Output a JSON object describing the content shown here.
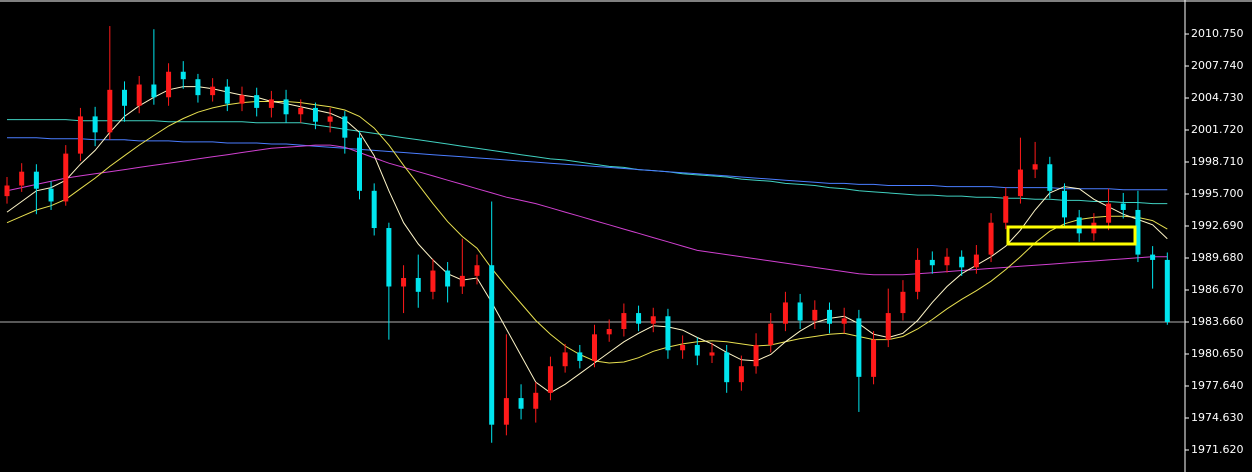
{
  "chart_data": {
    "type": "candlestick",
    "ylim": [
      1969.55,
      2013.95
    ],
    "yticks": [
      {
        "value": 2010.75,
        "label": "2010.750"
      },
      {
        "value": 2007.74,
        "label": "2007.740"
      },
      {
        "value": 2004.73,
        "label": "2004.730"
      },
      {
        "value": 2001.72,
        "label": "2001.720"
      },
      {
        "value": 1998.71,
        "label": "1998.710"
      },
      {
        "value": 1995.7,
        "label": "1995.700"
      },
      {
        "value": 1992.69,
        "label": "1992.690"
      },
      {
        "value": 1989.68,
        "label": "1989.680"
      },
      {
        "value": 1986.67,
        "label": "1986.670"
      },
      {
        "value": 1983.66,
        "label": "1983.660"
      },
      {
        "value": 1980.65,
        "label": "1980.650"
      },
      {
        "value": 1977.64,
        "label": "1977.640"
      },
      {
        "value": 1974.63,
        "label": "1974.630"
      },
      {
        "value": 1971.62,
        "label": "1971.620"
      }
    ],
    "up_color": "#ff1a1a",
    "down_color": "#00e5ee",
    "open": [
      1995.5,
      1996.5,
      1997.8,
      1996.2,
      1995.0,
      1999.5,
      2003.0,
      2001.5,
      2005.5,
      2004.0,
      2006.0,
      2004.8,
      2007.2,
      2006.5,
      2005.0,
      2005.8,
      2004.2,
      2005.0,
      2003.8,
      2004.6,
      2003.2,
      2003.8,
      2002.5,
      2003.0,
      2001.0,
      1996.0,
      1992.5,
      1987.0,
      1987.8,
      1986.5,
      1988.5,
      1987.0,
      1988.0,
      1989.0,
      1974.0,
      1976.5,
      1975.5,
      1977.0,
      1979.5,
      1980.8,
      1980.0,
      1982.5,
      1983.0,
      1984.5,
      1983.5,
      1984.2,
      1981.0,
      1981.5,
      1980.5,
      1980.8,
      1978.0,
      1979.5,
      1981.5,
      1983.5,
      1985.5,
      1983.8,
      1984.8,
      1983.5,
      1984.0,
      1978.5,
      1982.0,
      1984.5,
      1986.5,
      1989.5,
      1989.0,
      1989.8,
      1988.8,
      1990.0,
      1993.0,
      1995.5,
      1998.0,
      1998.5,
      1996.0,
      1993.5,
      1992.0,
      1993.0,
      1994.8,
      1994.2,
      1990.0,
      1989.5
    ],
    "high": [
      1997.3,
      1998.6,
      1998.5,
      1996.9,
      2000.3,
      2003.8,
      2003.9,
      2011.5,
      2006.3,
      2006.8,
      2011.2,
      2008.0,
      2008.2,
      2007.0,
      2006.6,
      2006.5,
      2005.8,
      2005.7,
      2005.4,
      2005.5,
      2004.6,
      2004.3,
      2003.8,
      2003.5,
      2001.6,
      1996.7,
      1993.0,
      1989.0,
      1990.0,
      1989.6,
      1989.3,
      1991.5,
      1990.0,
      1995.0,
      1982.5,
      1977.8,
      1978.0,
      1980.4,
      1981.6,
      1981.5,
      1983.4,
      1983.9,
      1985.4,
      1985.2,
      1985.0,
      1984.9,
      1982.4,
      1982.2,
      1981.7,
      1981.5,
      1980.5,
      1982.6,
      1984.5,
      1986.5,
      1986.3,
      1985.7,
      1985.5,
      1985.0,
      1984.8,
      1982.8,
      1986.8,
      1987.6,
      1990.6,
      1990.3,
      1990.6,
      1990.4,
      1990.9,
      1993.9,
      1996.3,
      2001.0,
      2000.6,
      1999.2,
      1996.7,
      1994.2,
      1993.9,
      1996.2,
      1995.8,
      1996.0,
      1990.8,
      1990.2
    ],
    "low": [
      1994.8,
      1995.9,
      1993.8,
      1994.2,
      1994.6,
      1998.8,
      2000.2,
      2000.8,
      2002.5,
      2003.3,
      2004.1,
      2004.0,
      2005.6,
      2004.3,
      2004.4,
      2003.5,
      2003.5,
      2003.0,
      2002.9,
      2002.4,
      2002.4,
      2001.8,
      2001.5,
      1999.5,
      1995.2,
      1991.8,
      1982.0,
      1984.5,
      1985.0,
      1985.8,
      1985.5,
      1986.3,
      1987.2,
      1972.3,
      1973.0,
      1974.5,
      1974.2,
      1976.3,
      1978.9,
      1979.3,
      1979.4,
      1981.8,
      1982.3,
      1982.8,
      1982.7,
      1980.2,
      1980.2,
      1979.6,
      1979.8,
      1977.0,
      1977.2,
      1978.8,
      1980.8,
      1982.8,
      1983.0,
      1983.0,
      1982.6,
      1982.6,
      1975.2,
      1977.8,
      1981.3,
      1983.8,
      1985.8,
      1988.2,
      1988.3,
      1988.0,
      1988.2,
      1989.3,
      1992.4,
      1994.8,
      1997.2,
      1995.3,
      1992.7,
      1991.2,
      1991.3,
      1992.3,
      1993.4,
      1989.3,
      1986.8,
      1983.4
    ],
    "close": [
      1996.5,
      1997.8,
      1996.2,
      1995.0,
      1999.5,
      2003.0,
      2001.5,
      2005.5,
      2004.0,
      2006.0,
      2004.8,
      2007.2,
      2006.5,
      2005.0,
      2005.8,
      2004.2,
      2005.0,
      2003.8,
      2004.6,
      2003.2,
      2003.8,
      2002.5,
      2003.0,
      2001.0,
      1996.0,
      1992.5,
      1987.0,
      1987.8,
      1986.5,
      1988.5,
      1987.0,
      1988.0,
      1989.0,
      1974.0,
      1976.5,
      1975.5,
      1977.0,
      1979.5,
      1980.8,
      1980.0,
      1982.5,
      1983.0,
      1984.5,
      1983.5,
      1984.2,
      1981.0,
      1981.5,
      1980.5,
      1980.8,
      1978.0,
      1979.5,
      1981.5,
      1983.5,
      1985.5,
      1983.8,
      1984.8,
      1983.5,
      1984.0,
      1978.5,
      1982.0,
      1984.5,
      1986.5,
      1989.5,
      1989.0,
      1989.8,
      1988.8,
      1990.0,
      1993.0,
      1995.5,
      1998.0,
      1998.5,
      1996.0,
      1993.5,
      1992.0,
      1993.0,
      1994.8,
      1994.2,
      1990.0,
      1989.5,
      1983.66
    ],
    "series": [
      {
        "color": "#40d0c0",
        "values": [
          2002.7,
          2002.7,
          2002.7,
          2002.7,
          2002.7,
          2002.6,
          2002.6,
          2002.6,
          2002.6,
          2002.6,
          2002.6,
          2002.5,
          2002.5,
          2002.5,
          2002.5,
          2002.5,
          2002.5,
          2002.4,
          2002.4,
          2002.4,
          2002.4,
          2002.2,
          2002.0,
          2001.8,
          2001.6,
          2001.4,
          2001.2,
          2001.0,
          2000.8,
          2000.6,
          2000.4,
          2000.2,
          2000.0,
          1999.8,
          1999.6,
          1999.4,
          1999.2,
          1999.0,
          1998.9,
          1998.7,
          1998.5,
          1998.3,
          1998.2,
          1998.0,
          1997.9,
          1997.8,
          1997.6,
          1997.5,
          1997.4,
          1997.3,
          1997.1,
          1997.0,
          1996.9,
          1996.7,
          1996.6,
          1996.5,
          1996.3,
          1996.2,
          1996.0,
          1995.9,
          1995.8,
          1995.7,
          1995.6,
          1995.6,
          1995.5,
          1995.5,
          1995.4,
          1995.4,
          1995.3,
          1995.3,
          1995.2,
          1995.2,
          1995.1,
          1995.1,
          1995.0,
          1995.0,
          1994.9,
          1994.9,
          1994.8,
          1994.8
        ]
      },
      {
        "color": "#4a7dff",
        "values": [
          2001.0,
          2001.0,
          2001.0,
          2000.9,
          2000.9,
          2000.9,
          2000.8,
          2000.8,
          2000.8,
          2000.7,
          2000.7,
          2000.7,
          2000.6,
          2000.6,
          2000.6,
          2000.5,
          2000.5,
          2000.5,
          2000.4,
          2000.4,
          2000.3,
          2000.2,
          2000.1,
          2000.0,
          1999.9,
          1999.8,
          1999.7,
          1999.6,
          1999.5,
          1999.4,
          1999.3,
          1999.2,
          1999.1,
          1999.0,
          1998.9,
          1998.8,
          1998.7,
          1998.6,
          1998.5,
          1998.4,
          1998.3,
          1998.2,
          1998.1,
          1998.0,
          1997.9,
          1997.8,
          1997.7,
          1997.6,
          1997.5,
          1997.4,
          1997.3,
          1997.2,
          1997.1,
          1997.0,
          1996.9,
          1996.8,
          1996.7,
          1996.7,
          1996.6,
          1996.6,
          1996.5,
          1996.5,
          1996.5,
          1996.5,
          1996.4,
          1996.4,
          1996.4,
          1996.4,
          1996.3,
          1996.3,
          1996.3,
          1996.3,
          1996.2,
          1996.2,
          1996.2,
          1996.2,
          1996.1,
          1996.1,
          1996.1,
          1996.1
        ]
      },
      {
        "color": "#d040d0",
        "values": [
          1996.0,
          1996.3,
          1996.6,
          1996.9,
          1997.2,
          1997.4,
          1997.6,
          1997.8,
          1998.0,
          1998.2,
          1998.4,
          1998.6,
          1998.8,
          1999.0,
          1999.2,
          1999.4,
          1999.6,
          1999.8,
          2000.0,
          2000.1,
          2000.2,
          2000.3,
          2000.3,
          2000.1,
          1999.6,
          1999.1,
          1998.6,
          1998.2,
          1997.8,
          1997.4,
          1997.0,
          1996.6,
          1996.2,
          1995.8,
          1995.4,
          1995.1,
          1994.8,
          1994.4,
          1994.0,
          1993.6,
          1993.2,
          1992.8,
          1992.4,
          1992.0,
          1991.6,
          1991.2,
          1990.8,
          1990.4,
          1990.2,
          1990.0,
          1989.8,
          1989.6,
          1989.4,
          1989.2,
          1989.0,
          1988.8,
          1988.6,
          1988.4,
          1988.2,
          1988.1,
          1988.1,
          1988.1,
          1988.2,
          1988.3,
          1988.4,
          1988.5,
          1988.6,
          1988.7,
          1988.8,
          1988.9,
          1989.0,
          1989.1,
          1989.2,
          1989.3,
          1989.4,
          1989.5,
          1989.6,
          1989.7,
          1989.8,
          1989.8
        ]
      },
      {
        "color": "#e8e050",
        "values": [
          1993.0,
          1993.6,
          1994.2,
          1994.6,
          1995.2,
          1996.2,
          1997.2,
          1998.3,
          1999.3,
          2000.3,
          2001.2,
          2002.1,
          2002.8,
          2003.4,
          2003.8,
          2004.1,
          2004.3,
          2004.4,
          2004.4,
          2004.4,
          2004.3,
          2004.1,
          2003.9,
          2003.6,
          2003.0,
          2001.9,
          2000.3,
          1998.4,
          1996.6,
          1994.8,
          1993.1,
          1991.7,
          1990.6,
          1988.7,
          1987.0,
          1985.4,
          1983.8,
          1982.5,
          1981.4,
          1980.6,
          1980.0,
          1979.8,
          1979.9,
          1980.3,
          1980.9,
          1981.3,
          1981.6,
          1981.8,
          1981.9,
          1981.8,
          1981.6,
          1981.4,
          1981.5,
          1981.8,
          1982.1,
          1982.3,
          1982.5,
          1982.6,
          1982.3,
          1982.0,
          1982.0,
          1982.3,
          1983.0,
          1983.9,
          1984.9,
          1985.8,
          1986.6,
          1987.5,
          1988.6,
          1989.8,
          1991.1,
          1992.2,
          1992.9,
          1993.3,
          1993.5,
          1993.6,
          1993.6,
          1993.5,
          1993.2,
          1992.4
        ]
      },
      {
        "color": "#fff6c8",
        "values": [
          1994.0,
          1995.0,
          1996.0,
          1996.3,
          1997.0,
          1998.5,
          1999.8,
          2001.5,
          2003.0,
          2004.0,
          2004.8,
          2005.5,
          2005.8,
          2005.8,
          2005.6,
          2005.3,
          2005.0,
          2004.8,
          2004.4,
          2004.2,
          2003.9,
          2003.6,
          2003.3,
          2002.7,
          2001.5,
          1999.3,
          1996.0,
          1993.0,
          1991.0,
          1989.5,
          1988.2,
          1987.6,
          1987.8,
          1985.5,
          1983.0,
          1980.5,
          1978.0,
          1977.0,
          1977.8,
          1978.8,
          1979.8,
          1980.8,
          1981.8,
          1982.6,
          1983.3,
          1983.2,
          1982.9,
          1982.2,
          1981.6,
          1980.8,
          1980.1,
          1980.0,
          1980.6,
          1981.8,
          1982.8,
          1983.6,
          1984.0,
          1984.2,
          1983.5,
          1982.5,
          1982.2,
          1982.6,
          1983.8,
          1985.5,
          1987.0,
          1988.2,
          1989.0,
          1989.8,
          1990.8,
          1992.3,
          1994.2,
          1995.8,
          1996.4,
          1996.2,
          1995.2,
          1994.5,
          1993.8,
          1993.3,
          1992.8,
          1991.5
        ]
      }
    ]
  }
}
